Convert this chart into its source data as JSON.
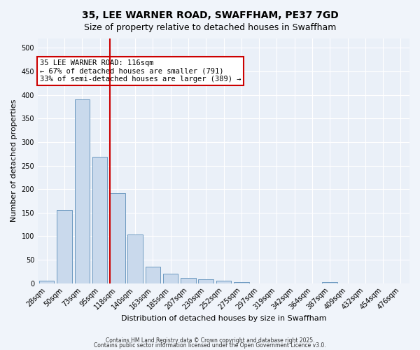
{
  "title": "35, LEE WARNER ROAD, SWAFFHAM, PE37 7GD",
  "subtitle": "Size of property relative to detached houses in Swaffham",
  "xlabel": "Distribution of detached houses by size in Swaffham",
  "ylabel": "Number of detached properties",
  "bar_labels": [
    "28sqm",
    "50sqm",
    "73sqm",
    "95sqm",
    "118sqm",
    "140sqm",
    "163sqm",
    "185sqm",
    "207sqm",
    "230sqm",
    "252sqm",
    "275sqm",
    "297sqm",
    "319sqm",
    "342sqm",
    "364sqm",
    "387sqm",
    "409sqm",
    "432sqm",
    "454sqm",
    "476sqm"
  ],
  "bar_values": [
    5,
    155,
    390,
    268,
    192,
    103,
    35,
    20,
    12,
    8,
    5,
    3,
    0,
    0,
    0,
    0,
    3,
    0,
    0,
    0,
    0
  ],
  "bar_color": "#c9d9ec",
  "bar_edgecolor": "#5b8db8",
  "highlight_index": 4,
  "red_line_color": "#cc0000",
  "ylim": [
    0,
    520
  ],
  "yticks": [
    0,
    50,
    100,
    150,
    200,
    250,
    300,
    350,
    400,
    450,
    500
  ],
  "annotation_text": "35 LEE WARNER ROAD: 116sqm\n← 67% of detached houses are smaller (791)\n33% of semi-detached houses are larger (389) →",
  "annotation_box_color": "#ffffff",
  "annotation_box_edgecolor": "#cc0000",
  "footer1": "Contains HM Land Registry data © Crown copyright and database right 2025.",
  "footer2": "Contains public sector information licensed under the Open Government Licence v3.0.",
  "background_color": "#f0f4fa",
  "plot_background": "#eaf0f8",
  "grid_color": "#ffffff",
  "title_fontsize": 10,
  "subtitle_fontsize": 9,
  "tick_fontsize": 7,
  "ylabel_fontsize": 8,
  "xlabel_fontsize": 8,
  "annotation_fontsize": 7.5,
  "footer_fontsize": 5.5
}
